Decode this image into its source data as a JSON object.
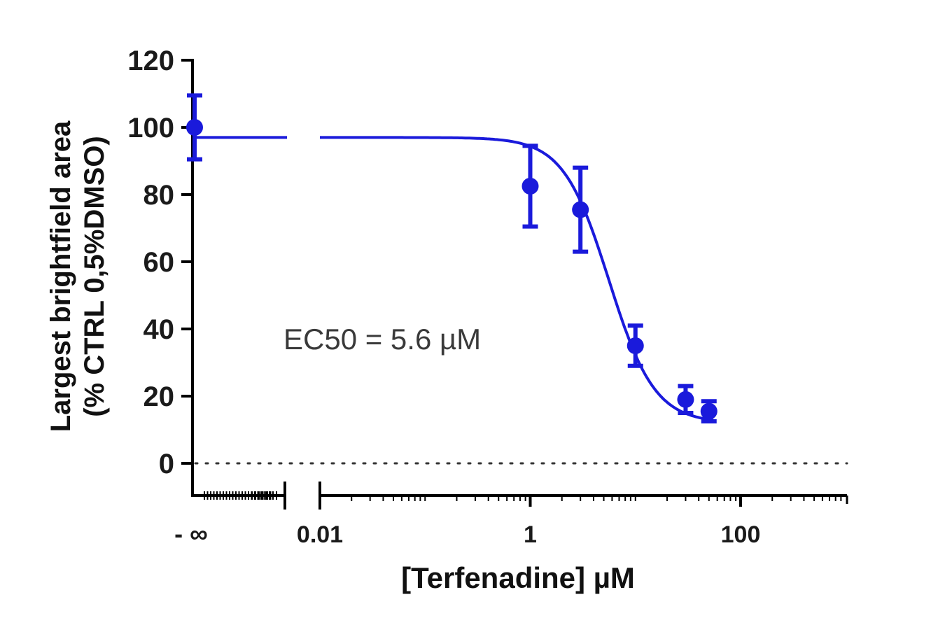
{
  "chart_data": {
    "type": "scatter",
    "xlabel": "[Terfenadine] µM",
    "ylabel_lines": [
      "Largest brightfield area",
      "(% CTRL 0,5%DMSO)"
    ],
    "x_scale": "log",
    "xlim": [
      0.0001,
      1000
    ],
    "ylim": [
      -10,
      120
    ],
    "y_ticks": [
      0,
      20,
      40,
      60,
      80,
      100,
      120
    ],
    "x_ticks": [
      {
        "label": "- ∞",
        "value": null
      },
      {
        "label": "0.01",
        "value": 0.01
      },
      {
        "label": "1",
        "value": 1
      },
      {
        "label": "100",
        "value": 100
      }
    ],
    "zero_line": "dotted",
    "annotation": "EC50 = 5.6 µM",
    "series": [
      {
        "color": "#1a1adb",
        "points": [
          {
            "x": null,
            "y": 100,
            "err": 9.5
          },
          {
            "x": 1,
            "y": 82.5,
            "err": 12
          },
          {
            "x": 3,
            "y": 75.5,
            "err": 12.5
          },
          {
            "x": 10,
            "y": 35,
            "err": 6
          },
          {
            "x": 30,
            "y": 19,
            "err": 4
          },
          {
            "x": 50,
            "y": 15.5,
            "err": 3
          }
        ],
        "fit": {
          "model": "four-parameter logistic",
          "top": 97,
          "bottom": 12,
          "ec50": 5.6,
          "hill": 2.0
        }
      }
    ]
  }
}
